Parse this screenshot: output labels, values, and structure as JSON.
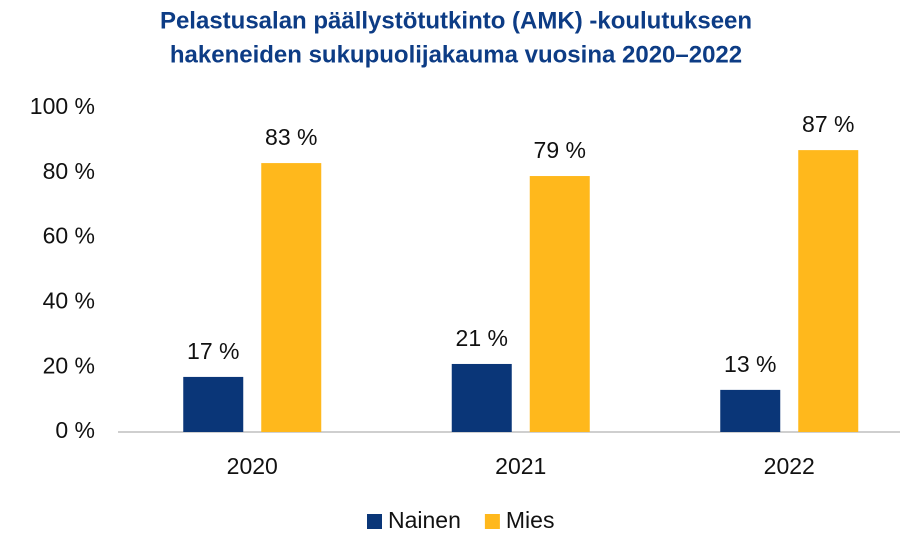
{
  "chart_data": {
    "type": "bar",
    "title": [
      "Pelastusalan päällystötutkinto (AMK) -koulutukseen",
      "hakeneiden sukupuolijakauma vuosina 2020–2022"
    ],
    "categories": [
      "2020",
      "2021",
      "2022"
    ],
    "series": [
      {
        "name": "Nainen",
        "color": "#0a3678",
        "values": [
          17,
          21,
          13
        ],
        "value_labels": [
          "17 %",
          "21 %",
          "13 %"
        ]
      },
      {
        "name": "Mies",
        "color": "#ffb81c",
        "values": [
          83,
          79,
          87
        ],
        "value_labels": [
          "83 %",
          "79 %",
          "87 %"
        ]
      }
    ],
    "ylim": [
      0,
      100
    ],
    "yticks": [
      {
        "value": 0,
        "label": "0 %"
      },
      {
        "value": 20,
        "label": "20 %"
      },
      {
        "value": 40,
        "label": "40 %"
      },
      {
        "value": 60,
        "label": "60 %"
      },
      {
        "value": 80,
        "label": "80 %"
      },
      {
        "value": 100,
        "label": "100 %"
      }
    ],
    "grid": false,
    "legend": "bottom"
  }
}
